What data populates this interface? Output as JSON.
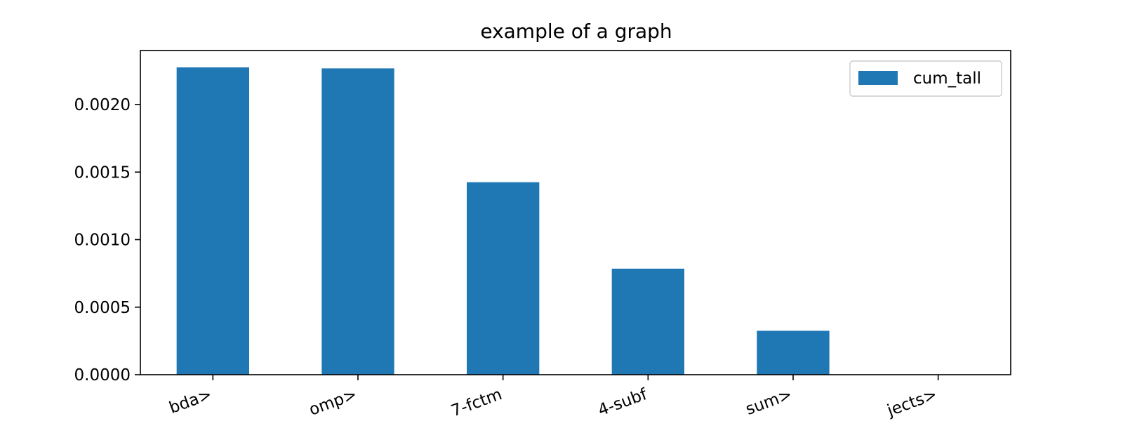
{
  "chart_data": {
    "type": "bar",
    "title": "example of a graph",
    "xlabel": "",
    "ylabel": "",
    "categories": [
      "bda>",
      "omp>",
      "7-fctm",
      "4-subf",
      "sum>",
      "jects>"
    ],
    "series": [
      {
        "name": "cum_tall",
        "color": "#1f77b4",
        "values": [
          0.002275,
          0.002268,
          0.001425,
          0.000785,
          0.000325,
          0.0
        ]
      }
    ],
    "ylim": [
      0,
      0.0024
    ],
    "yticks": [
      0.0,
      0.0005,
      0.001,
      0.0015,
      0.002
    ],
    "ytick_labels": [
      "0.0000",
      "0.0005",
      "0.0010",
      "0.0015",
      "0.0020"
    ],
    "grid": false,
    "legend_position": "top-right"
  }
}
